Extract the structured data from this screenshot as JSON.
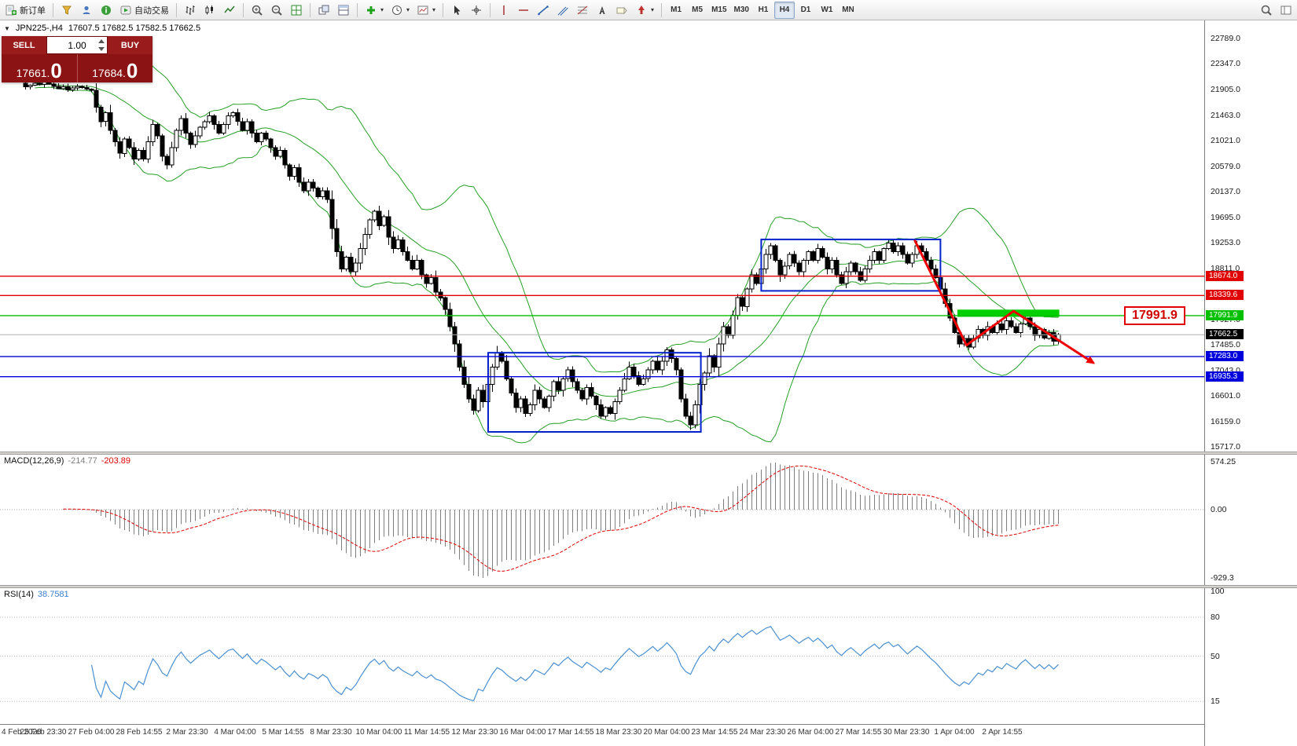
{
  "toolbar": {
    "items": [
      {
        "name": "new-order",
        "kind": "button",
        "icon": "new-order",
        "label": "新订单"
      },
      {
        "kind": "sep"
      },
      {
        "name": "funnel",
        "kind": "button",
        "icon": "funnel"
      },
      {
        "name": "profile",
        "kind": "button",
        "icon": "person"
      },
      {
        "name": "info",
        "kind": "button",
        "icon": "info"
      },
      {
        "name": "auto-trading",
        "kind": "button",
        "icon": "autotrade",
        "label": "自动交易"
      },
      {
        "kind": "sep"
      },
      {
        "name": "bar-chart-mode",
        "kind": "button",
        "icon": "chart-bars"
      },
      {
        "name": "candlestick-mode",
        "kind": "button",
        "icon": "chart-candles"
      },
      {
        "name": "line-chart-mode",
        "kind": "button",
        "icon": "chart-line"
      },
      {
        "kind": "sep"
      },
      {
        "name": "zoom-in",
        "kind": "button",
        "icon": "zoom-in"
      },
      {
        "name": "zoom-out",
        "kind": "button",
        "icon": "zoom-out"
      },
      {
        "name": "tile-windows",
        "kind": "button",
        "icon": "tile-grid"
      },
      {
        "kind": "sep"
      },
      {
        "name": "cascade-windows",
        "kind": "button",
        "icon": "cascade"
      },
      {
        "name": "tile-horizontal",
        "kind": "button",
        "icon": "tile-h"
      },
      {
        "kind": "sep"
      },
      {
        "name": "add-indicator",
        "kind": "button",
        "icon": "add-indicator",
        "caret": true
      },
      {
        "name": "periods",
        "kind": "button",
        "icon": "clock",
        "caret": true
      },
      {
        "name": "templates",
        "kind": "button",
        "icon": "template",
        "caret": true
      },
      {
        "kind": "sep"
      },
      {
        "name": "cursor-tool",
        "kind": "button",
        "icon": "cursor"
      },
      {
        "name": "crosshair-tool",
        "kind": "button",
        "icon": "crosshair"
      },
      {
        "kind": "sep"
      },
      {
        "name": "vertical-line-tool",
        "kind": "button",
        "icon": "vline"
      },
      {
        "name": "horizontal-line-tool",
        "kind": "button",
        "icon": "hline"
      },
      {
        "name": "trendline-tool",
        "kind": "button",
        "icon": "trendline"
      },
      {
        "name": "channel-tool",
        "kind": "button",
        "icon": "channel"
      },
      {
        "name": "fibonacci-tool",
        "kind": "button",
        "icon": "fibonacci"
      },
      {
        "name": "text-tool",
        "kind": "button",
        "icon": "text"
      },
      {
        "name": "label-tool",
        "kind": "button",
        "icon": "label"
      },
      {
        "name": "arrows-tool",
        "kind": "button",
        "icon": "shapes",
        "caret": true
      },
      {
        "kind": "sep"
      },
      {
        "name": "tf-m1",
        "kind": "tf",
        "label": "M1"
      },
      {
        "name": "tf-m5",
        "kind": "tf",
        "label": "M5"
      },
      {
        "name": "tf-m15",
        "kind": "tf",
        "label": "M15"
      },
      {
        "name": "tf-m30",
        "kind": "tf",
        "label": "M30"
      },
      {
        "name": "tf-h1",
        "kind": "tf",
        "label": "H1"
      },
      {
        "name": "tf-h4",
        "kind": "tf",
        "label": "H4",
        "active": true
      },
      {
        "name": "tf-d1",
        "kind": "tf",
        "label": "D1"
      },
      {
        "name": "tf-w1",
        "kind": "tf",
        "label": "W1"
      },
      {
        "name": "tf-mn",
        "kind": "tf",
        "label": "MN"
      },
      {
        "kind": "spacer"
      },
      {
        "name": "search",
        "kind": "button",
        "icon": "search"
      },
      {
        "name": "panels",
        "kind": "button",
        "icon": "panel"
      }
    ]
  },
  "chart_header": {
    "symbol": "JPN225-,H4",
    "ohlc": "17607.5 17682.5 17582.5 17662.5"
  },
  "trade_panel": {
    "sell_label": "SELL",
    "buy_label": "BUY",
    "volume": "1.00",
    "sell_price_main": "17661.",
    "sell_price_big": "0",
    "buy_price_main": "17684.",
    "buy_price_big": "0"
  },
  "price_callout": {
    "text": "17991.9"
  },
  "time_axis": {
    "labels": [
      "4 Feb 2020",
      "25 Feb 23:30",
      "27 Feb 04:00",
      "28 Feb 14:55",
      "2 Mar 23:30",
      "4 Mar 04:00",
      "5 Mar 14:55",
      "8 Mar 23:30",
      "10 Mar 04:00",
      "11 Mar 14:55",
      "12 Mar 23:30",
      "16 Mar 04:00",
      "17 Mar 14:55",
      "18 Mar 23:30",
      "20 Mar 04:00",
      "23 Mar 14:55",
      "24 Mar 23:30",
      "26 Mar 04:00",
      "27 Mar 14:55",
      "30 Mar 23:30",
      "1 Apr 04:00",
      "2 Apr 14:55"
    ]
  },
  "chart_data": {
    "type": "candlestick",
    "symbol": "JPN225-",
    "timeframe": "H4",
    "ohlc_display": {
      "open": "17607.5",
      "high": "17682.5",
      "low": "17582.5",
      "close": "17662.5"
    },
    "price_axis": {
      "min": 15717.0,
      "max": 22789.0,
      "step": 442.0
    },
    "candles": {
      "closes": [
        21950,
        21980,
        22010,
        21990,
        22030,
        22000,
        21960,
        21920,
        21950,
        21900,
        21930,
        21960,
        21940,
        21910,
        21890,
        21600,
        21350,
        21500,
        21200,
        21000,
        20800,
        21050,
        20900,
        20700,
        20850,
        20700,
        21000,
        21300,
        21100,
        20750,
        20600,
        20900,
        21200,
        21400,
        21150,
        20950,
        21100,
        21250,
        21350,
        21450,
        21300,
        21150,
        21300,
        21450,
        21500,
        21350,
        21200,
        21350,
        21150,
        21000,
        21150,
        21050,
        20900,
        20750,
        20850,
        20600,
        20400,
        20550,
        20300,
        20150,
        20300,
        20200,
        20050,
        20150,
        20000,
        19500,
        19100,
        18800,
        19000,
        18750,
        18900,
        19150,
        19400,
        19650,
        19800,
        19550,
        19700,
        19350,
        19150,
        19300,
        19100,
        18950,
        18800,
        18950,
        18700,
        18550,
        18650,
        18400,
        18300,
        18100,
        17800,
        17500,
        17100,
        16800,
        16550,
        16350,
        16700,
        16500,
        16800,
        17100,
        17350,
        17200,
        16900,
        16650,
        16400,
        16550,
        16300,
        16450,
        16700,
        16550,
        16400,
        16600,
        16850,
        16700,
        16900,
        17050,
        16850,
        16700,
        16550,
        16750,
        16600,
        16450,
        16250,
        16400,
        16300,
        16500,
        16700,
        16900,
        17100,
        16950,
        16800,
        16900,
        17050,
        17200,
        17050,
        17200,
        17400,
        17250,
        17050,
        16550,
        16250,
        16100,
        16450,
        16800,
        17000,
        17300,
        17100,
        17500,
        17800,
        17650,
        18000,
        18300,
        18150,
        18450,
        18700,
        18550,
        18800,
        19050,
        19200,
        18950,
        18700,
        18850,
        19050,
        18900,
        18750,
        18950,
        19100,
        18950,
        19150,
        19000,
        18800,
        18950,
        18700,
        18550,
        18750,
        18900,
        18750,
        18600,
        18800,
        18950,
        19100,
        18950,
        19150,
        19250,
        19100,
        19200,
        19050,
        18900,
        19050,
        19200,
        19100,
        18950,
        18800,
        18650,
        18450,
        18200,
        17950,
        17700,
        17500,
        17600,
        17450,
        17600,
        17750,
        17650,
        17800,
        17700,
        17850,
        17750,
        17900,
        17800,
        17700,
        17850,
        17950,
        17800,
        17650,
        17750,
        17600,
        17700,
        17550,
        17662.5
      ]
    },
    "indicators": {
      "bollinger": {
        "period": 20,
        "deviation": 2,
        "color": "#26a026"
      },
      "macd": {
        "name": "MACD(12,26,9)",
        "value_main": "-214.77",
        "value_signal": "-203.89",
        "fast": 12,
        "slow": 26,
        "signal": 9,
        "axis": {
          "top": "574.25",
          "zero": "0.00",
          "bottom": "-929.3"
        }
      },
      "rsi": {
        "name": "RSI(14)",
        "value": "38.7581",
        "period": 14,
        "levels": [
          80,
          50,
          15
        ],
        "axis": [
          {
            "text": "100",
            "v": 100
          },
          {
            "text": "80",
            "v": 80
          },
          {
            "text": "50",
            "v": 50
          },
          {
            "text": "15",
            "v": 15
          }
        ]
      }
    },
    "objects": {
      "h_lines": [
        {
          "label": "18674.0",
          "value": 18674.0,
          "color": "#e00000"
        },
        {
          "label": "18339.6",
          "value": 18339.6,
          "color": "#e00000"
        },
        {
          "label": "17991.9",
          "value": 17991.9,
          "color": "#00c000"
        },
        {
          "label": "17283.0",
          "value": 17283.0,
          "color": "#0000dd"
        },
        {
          "label": "16935.3",
          "value": 16935.3,
          "color": "#0000dd"
        }
      ],
      "current_price": {
        "label": "17662.5",
        "value": 17662.5,
        "color": "#000000"
      },
      "boxes": [
        {
          "i1": 98.5,
          "i2": 143.6,
          "p1": 17350,
          "p2": 15980,
          "color": "#0022cc"
        },
        {
          "i1": 156.4,
          "i2": 194.4,
          "p1": 19310,
          "p2": 18420,
          "color": "#0022cc"
        }
      ],
      "zone": {
        "i1": 198,
        "i2": 219.6,
        "p1": 18095,
        "p2": 17970,
        "color": "#00d000"
      },
      "trend_arrow": {
        "color": "#ee0000",
        "points": [
          {
            "i": 188.5,
            "p": 19300
          },
          {
            "i": 199.5,
            "p": 17480
          },
          {
            "i": 209.5,
            "p": 18070
          },
          {
            "i": 226.5,
            "p": 17170
          }
        ]
      }
    }
  }
}
